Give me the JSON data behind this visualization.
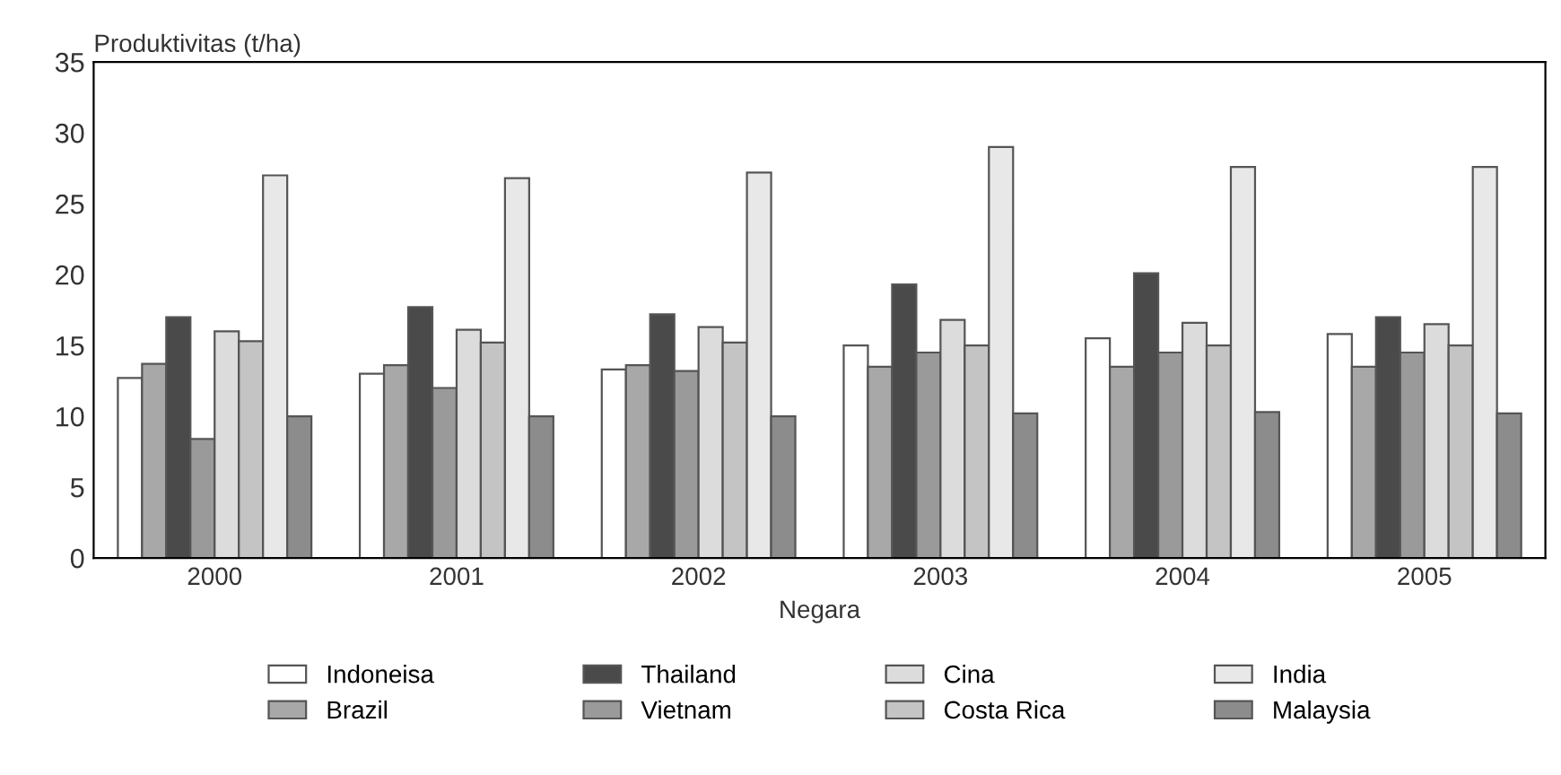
{
  "chart_data": {
    "type": "bar",
    "ylabel": "Produktivitas (t/ha)",
    "xlabel": "Negara",
    "categories": [
      "2000",
      "2001",
      "2002",
      "2003",
      "2004",
      "2005"
    ],
    "series": [
      {
        "name": "Indoneisa",
        "color": "#ffffff",
        "values": [
          12.7,
          13,
          13.3,
          15,
          15.5,
          15.8
        ]
      },
      {
        "name": "Brazil",
        "color": "#a8a8a8",
        "values": [
          13.7,
          13.6,
          13.6,
          13.5,
          13.5,
          13.5
        ]
      },
      {
        "name": "Thailand",
        "color": "#4a4a4a",
        "values": [
          17,
          17.7,
          17.2,
          19.3,
          20.1,
          17
        ]
      },
      {
        "name": "Vietnam",
        "color": "#9a9a9a",
        "values": [
          8.4,
          12,
          13.2,
          14.5,
          14.5,
          14.5
        ]
      },
      {
        "name": "Cina",
        "color": "#dcdcdc",
        "values": [
          16,
          16.1,
          16.3,
          16.8,
          16.6,
          16.5
        ]
      },
      {
        "name": "Costa Rica",
        "color": "#c4c4c4",
        "values": [
          15.3,
          15.2,
          15.2,
          15,
          15,
          15
        ]
      },
      {
        "name": "India",
        "color": "#e8e8e8",
        "values": [
          27,
          26.8,
          27.2,
          29,
          27.6,
          27.6
        ]
      },
      {
        "name": "Malaysia",
        "color": "#8c8c8c",
        "values": [
          10,
          10,
          10,
          10.2,
          10.3,
          10.2
        ]
      }
    ],
    "ylim": [
      0,
      35
    ],
    "yticks": [
      0,
      5,
      10,
      15,
      20,
      25,
      30,
      35
    ],
    "grid": false,
    "legend": "bottom"
  }
}
